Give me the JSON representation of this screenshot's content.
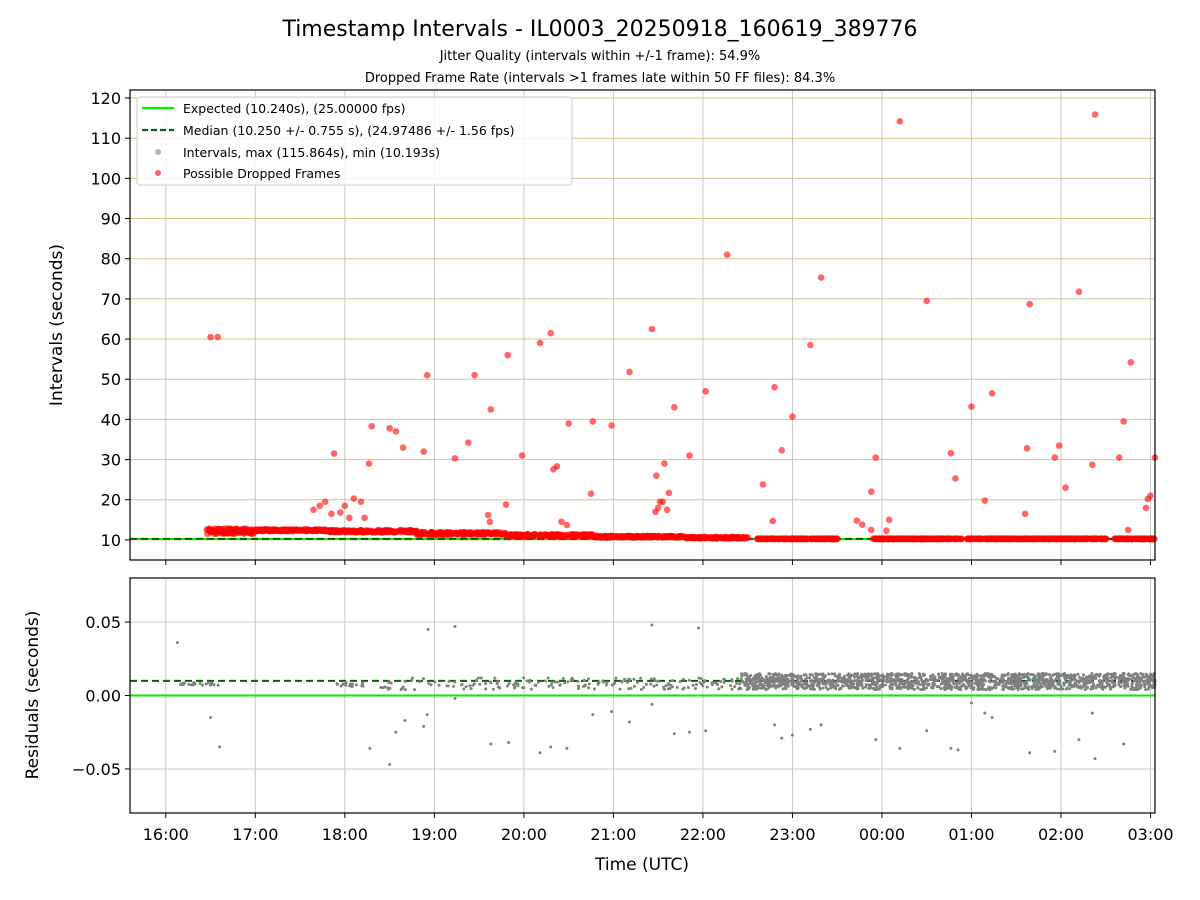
{
  "chart_data": {
    "type": "scatter",
    "title": "Timestamp Intervals - IL0003_20250918_160619_389776",
    "subtitles": [
      "Jitter Quality (intervals within +/-1 frame): 54.9%",
      "Dropped Frame Rate (intervals >1 frames late within 50 FF files): 84.3%"
    ],
    "xlabel": "Time (UTC)",
    "x_ticks": [
      "16:00",
      "17:00",
      "18:00",
      "19:00",
      "20:00",
      "21:00",
      "22:00",
      "23:00",
      "00:00",
      "01:00",
      "02:00",
      "03:00"
    ],
    "x_range_hours": [
      15.6,
      27.05
    ],
    "top_panel": {
      "ylabel": "Intervals (seconds)",
      "ylim": [
        5,
        122
      ],
      "y_ticks": [
        10,
        20,
        30,
        40,
        50,
        60,
        70,
        80,
        90,
        100,
        110,
        120
      ],
      "expected": 10.24,
      "median": 10.25,
      "legend": {
        "placement": "upper-left",
        "entries": [
          "Expected (10.240s), (25.00000 fps)",
          "Median (10.250 +/- 0.755 s), (24.97486 +/- 1.56 fps)",
          "Intervals, max (115.864s), min (10.193s)",
          "Possible Dropped Frames"
        ]
      },
      "dropped_outliers": [
        [
          16.5,
          60.5
        ],
        [
          16.58,
          60.5
        ],
        [
          17.65,
          17.5
        ],
        [
          17.72,
          18.5
        ],
        [
          17.78,
          19.5
        ],
        [
          17.85,
          16.5
        ],
        [
          17.88,
          31.5
        ],
        [
          17.95,
          16.8
        ],
        [
          18.0,
          18.5
        ],
        [
          18.05,
          15.5
        ],
        [
          18.1,
          20.3
        ],
        [
          18.18,
          19.5
        ],
        [
          18.22,
          15.5
        ],
        [
          18.27,
          29.0
        ],
        [
          18.3,
          38.3
        ],
        [
          18.5,
          37.8
        ],
        [
          18.57,
          37.0
        ],
        [
          18.65,
          33.0
        ],
        [
          18.88,
          32.0
        ],
        [
          18.92,
          51.0
        ],
        [
          19.23,
          30.3
        ],
        [
          19.38,
          34.2
        ],
        [
          19.45,
          51.0
        ],
        [
          19.6,
          16.2
        ],
        [
          19.62,
          14.5
        ],
        [
          19.63,
          42.5
        ],
        [
          19.8,
          18.8
        ],
        [
          19.82,
          56.0
        ],
        [
          19.98,
          31.0
        ],
        [
          20.18,
          59.0
        ],
        [
          20.3,
          61.5
        ],
        [
          20.33,
          27.6
        ],
        [
          20.37,
          28.3
        ],
        [
          20.42,
          14.5
        ],
        [
          20.48,
          13.7
        ],
        [
          20.5,
          39.0
        ],
        [
          20.75,
          21.5
        ],
        [
          20.77,
          39.5
        ],
        [
          20.98,
          38.5
        ],
        [
          21.18,
          51.8
        ],
        [
          21.43,
          62.5
        ],
        [
          21.47,
          17.0
        ],
        [
          21.48,
          26.0
        ],
        [
          21.5,
          18.0
        ],
        [
          21.52,
          19.5
        ],
        [
          21.55,
          19.5
        ],
        [
          21.57,
          29.0
        ],
        [
          21.62,
          21.7
        ],
        [
          21.6,
          17.5
        ],
        [
          21.68,
          43.0
        ],
        [
          21.85,
          31.0
        ],
        [
          22.03,
          47.0
        ],
        [
          22.27,
          81.0
        ],
        [
          22.67,
          23.8
        ],
        [
          22.78,
          14.7
        ],
        [
          22.8,
          48.0
        ],
        [
          22.88,
          32.3
        ],
        [
          23.0,
          40.7
        ],
        [
          23.2,
          58.5
        ],
        [
          23.32,
          75.3
        ],
        [
          23.72,
          14.8
        ],
        [
          23.78,
          13.8
        ],
        [
          23.88,
          12.5
        ],
        [
          23.88,
          22.0
        ],
        [
          23.93,
          30.5
        ],
        [
          24.08,
          15.0
        ],
        [
          24.05,
          12.3
        ],
        [
          24.2,
          114.2
        ],
        [
          24.5,
          69.5
        ],
        [
          24.77,
          31.6
        ],
        [
          24.82,
          25.3
        ],
        [
          25.0,
          43.2
        ],
        [
          25.15,
          19.8
        ],
        [
          25.23,
          46.5
        ],
        [
          25.6,
          16.5
        ],
        [
          25.62,
          32.8
        ],
        [
          25.65,
          68.7
        ],
        [
          25.93,
          30.5
        ],
        [
          25.98,
          33.5
        ],
        [
          26.05,
          23.0
        ],
        [
          26.2,
          71.8
        ],
        [
          26.35,
          28.7
        ],
        [
          26.38,
          115.9
        ],
        [
          26.65,
          30.5
        ],
        [
          26.7,
          39.5
        ],
        [
          26.75,
          12.5
        ],
        [
          26.78,
          54.2
        ],
        [
          26.95,
          18.0
        ],
        [
          26.97,
          20.2
        ],
        [
          27.0,
          21.0
        ],
        [
          27.05,
          30.5
        ]
      ],
      "band_segments": [
        [
          16.45,
          17.0,
          11.5,
          12.8
        ],
        [
          17.0,
          17.8,
          12.2,
          12.6
        ],
        [
          17.8,
          18.8,
          11.9,
          12.4
        ],
        [
          18.8,
          19.8,
          11.3,
          11.9
        ],
        [
          19.8,
          20.8,
          10.9,
          11.4
        ],
        [
          20.8,
          21.8,
          10.6,
          11.0
        ],
        [
          21.8,
          22.5,
          10.4,
          10.7
        ],
        [
          22.6,
          23.5,
          10.24,
          10.3
        ],
        [
          23.9,
          24.9,
          10.24,
          10.3
        ],
        [
          24.95,
          26.5,
          10.24,
          10.3
        ],
        [
          26.6,
          27.05,
          10.24,
          10.3
        ]
      ]
    },
    "bottom_panel": {
      "ylabel": "Residuals (seconds)",
      "ylim": [
        -0.08,
        0.08
      ],
      "y_ticks": [
        -0.05,
        0.0,
        0.05
      ],
      "y_tick_labels": [
        "−0.05",
        "0.00",
        "0.05"
      ],
      "expected": 0.0,
      "median": 0.01,
      "outliers": [
        [
          16.13,
          0.036
        ],
        [
          16.5,
          -0.015
        ],
        [
          16.6,
          -0.035
        ],
        [
          18.28,
          -0.036
        ],
        [
          18.5,
          -0.047
        ],
        [
          18.57,
          -0.025
        ],
        [
          18.67,
          -0.017
        ],
        [
          18.88,
          -0.021
        ],
        [
          18.92,
          -0.013
        ],
        [
          18.93,
          0.045
        ],
        [
          19.23,
          0.047
        ],
        [
          19.23,
          -0.002
        ],
        [
          19.63,
          -0.033
        ],
        [
          19.83,
          -0.032
        ],
        [
          20.18,
          -0.039
        ],
        [
          20.3,
          -0.035
        ],
        [
          20.48,
          -0.036
        ],
        [
          20.77,
          -0.013
        ],
        [
          20.98,
          -0.011
        ],
        [
          21.18,
          -0.018
        ],
        [
          21.43,
          0.048
        ],
        [
          21.43,
          -0.006
        ],
        [
          21.68,
          -0.026
        ],
        [
          21.85,
          -0.025
        ],
        [
          21.95,
          0.046
        ],
        [
          22.03,
          -0.024
        ],
        [
          22.8,
          -0.02
        ],
        [
          22.88,
          -0.029
        ],
        [
          23.0,
          -0.027
        ],
        [
          23.2,
          -0.023
        ],
        [
          23.32,
          -0.02
        ],
        [
          23.93,
          -0.03
        ],
        [
          24.2,
          -0.036
        ],
        [
          24.5,
          -0.024
        ],
        [
          24.77,
          -0.036
        ],
        [
          24.85,
          -0.037
        ],
        [
          25.0,
          -0.005
        ],
        [
          25.15,
          -0.012
        ],
        [
          25.23,
          -0.015
        ],
        [
          25.65,
          -0.039
        ],
        [
          25.93,
          -0.038
        ],
        [
          26.2,
          -0.03
        ],
        [
          26.35,
          -0.012
        ],
        [
          26.38,
          -0.043
        ],
        [
          26.7,
          -0.033
        ]
      ],
      "sparse_clusters": [
        [
          16.15,
          16.6,
          0.007,
          0.009
        ],
        [
          17.9,
          18.3,
          0.006,
          0.009
        ],
        [
          18.4,
          22.4,
          0.004,
          0.012
        ]
      ],
      "dense_cluster": [
        22.4,
        27.05,
        0.004,
        0.015
      ]
    },
    "colors": {
      "expected": "#00ee00",
      "median": "#006400",
      "dropped": "#ff0000",
      "intervals": "#808080",
      "hgrid_top": "#d8c38a",
      "grid": "#c8c8c8"
    }
  }
}
